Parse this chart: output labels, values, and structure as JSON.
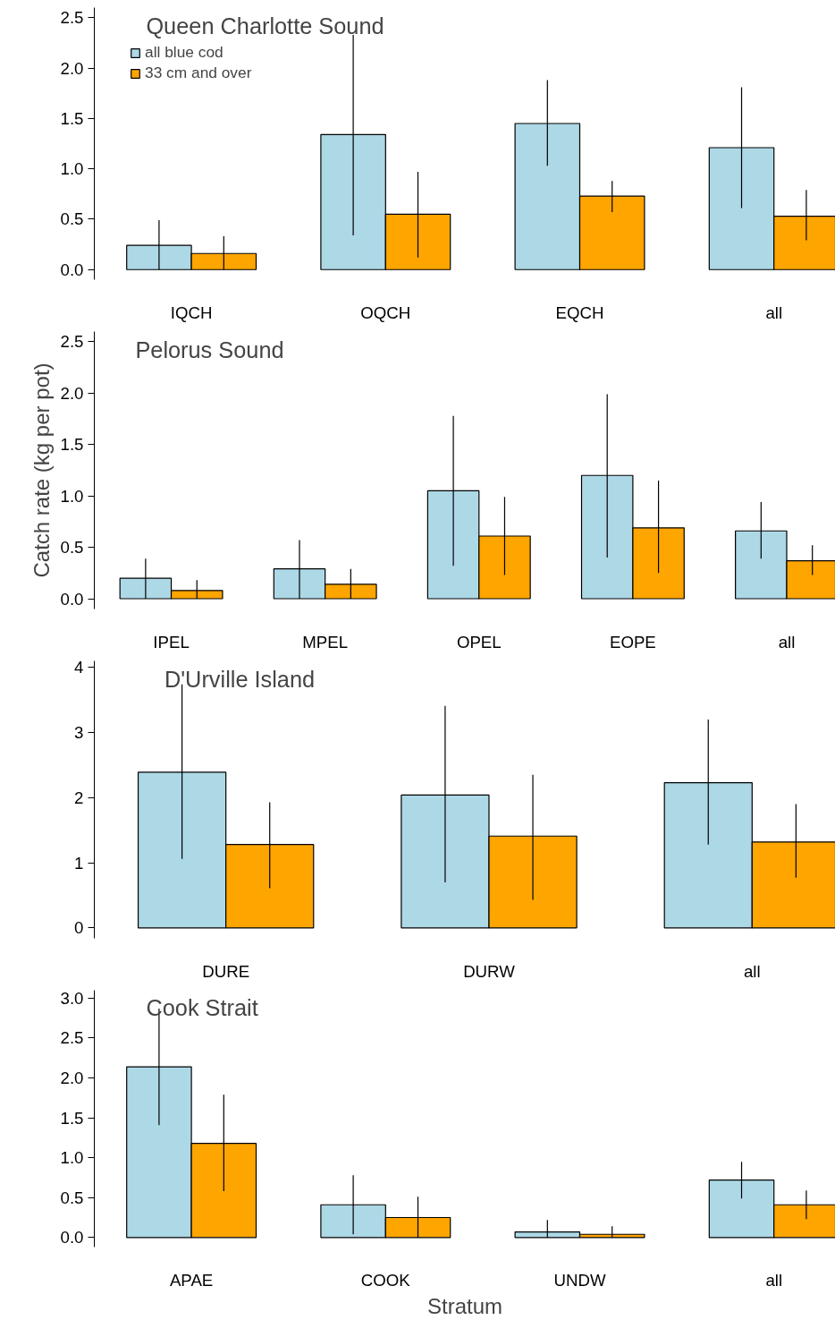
{
  "chart_data": [
    {
      "type": "bar",
      "title": "Queen Charlotte Sound",
      "categories": [
        "IQCH",
        "OQCH",
        "EQCH",
        "all"
      ],
      "legend": "top left",
      "ylim": [
        -0.1,
        2.6
      ],
      "yticks": [
        {
          "value": 0,
          "label": "0.0"
        },
        {
          "value": 0.5,
          "label": "0.5"
        },
        {
          "value": 1,
          "label": "1.0"
        },
        {
          "value": 1.5,
          "label": "1.5"
        },
        {
          "value": 2,
          "label": "2.0"
        },
        {
          "value": 2.5,
          "label": "2.5"
        }
      ],
      "series": [
        {
          "name": "all blue cod",
          "color": "#add8e6",
          "values": [
            0.24,
            1.34,
            1.45,
            1.21
          ],
          "errors": [
            [
              0.0,
              0.49
            ],
            [
              0.34,
              2.33
            ],
            [
              1.03,
              1.88
            ],
            [
              0.61,
              1.81
            ]
          ]
        },
        {
          "name": "33 cm and over",
          "color": "#ffa500",
          "values": [
            0.16,
            0.55,
            0.73,
            0.53
          ],
          "errors": [
            [
              0.0,
              0.33
            ],
            [
              0.12,
              0.97
            ],
            [
              0.57,
              0.88
            ],
            [
              0.29,
              0.79
            ]
          ]
        }
      ]
    },
    {
      "type": "bar",
      "title": "Pelorus Sound",
      "ylabel": "Catch rate (kg per pot)",
      "categories": [
        "IPEL",
        "MPEL",
        "OPEL",
        "EOPE",
        "all"
      ],
      "ylim": [
        -0.1,
        2.6
      ],
      "yticks": [
        {
          "value": 0,
          "label": "0.0"
        },
        {
          "value": 0.5,
          "label": "0.5"
        },
        {
          "value": 1,
          "label": "1.0"
        },
        {
          "value": 1.5,
          "label": "1.5"
        },
        {
          "value": 2,
          "label": "2.0"
        },
        {
          "value": 2.5,
          "label": "2.5"
        }
      ],
      "series": [
        {
          "color": "#add8e6",
          "values": [
            0.2,
            0.29,
            1.05,
            1.2,
            0.66
          ],
          "errors": [
            [
              0.0,
              0.39
            ],
            [
              0.0,
              0.57
            ],
            [
              0.32,
              1.78
            ],
            [
              0.4,
              1.99
            ],
            [
              0.39,
              0.94
            ]
          ]
        },
        {
          "color": "#ffa500",
          "values": [
            0.08,
            0.14,
            0.61,
            0.69,
            0.37
          ],
          "errors": [
            [
              0.0,
              0.18
            ],
            [
              0.0,
              0.29
            ],
            [
              0.23,
              0.99
            ],
            [
              0.25,
              1.15
            ],
            [
              0.23,
              0.52
            ]
          ]
        }
      ]
    },
    {
      "type": "bar",
      "title": "D'Urville Island",
      "categories": [
        "DURE",
        "DURW",
        "all"
      ],
      "ylim": [
        -0.16,
        4.1
      ],
      "yticks": [
        0,
        1,
        2,
        3,
        4
      ],
      "series": [
        {
          "color": "#add8e6",
          "values": [
            2.39,
            2.04,
            2.23
          ],
          "errors": [
            [
              1.06,
              3.74
            ],
            [
              0.7,
              3.41
            ],
            [
              1.28,
              3.2
            ]
          ]
        },
        {
          "color": "#ffa500",
          "values": [
            1.28,
            1.41,
            1.32
          ],
          "errors": [
            [
              0.61,
              1.93
            ],
            [
              0.43,
              2.35
            ],
            [
              0.77,
              1.9
            ]
          ]
        }
      ]
    },
    {
      "type": "bar",
      "title": "Cook Strait",
      "xlabel": "Stratum",
      "categories": [
        "APAE",
        "COOK",
        "UNDW",
        "all"
      ],
      "ylim": [
        -0.12,
        3.1
      ],
      "yticks": [
        {
          "value": 0,
          "label": "0.0"
        },
        {
          "value": 0.5,
          "label": "0.5"
        },
        {
          "value": 1,
          "label": "1.0"
        },
        {
          "value": 1.5,
          "label": "1.5"
        },
        {
          "value": 2,
          "label": "2.0"
        },
        {
          "value": 2.5,
          "label": "2.5"
        },
        {
          "value": 3,
          "label": "3.0"
        }
      ],
      "series": [
        {
          "color": "#add8e6",
          "values": [
            2.14,
            0.41,
            0.07,
            0.72
          ],
          "errors": [
            [
              1.41,
              2.87
            ],
            [
              0.04,
              0.78
            ],
            [
              0.0,
              0.22
            ],
            [
              0.49,
              0.95
            ]
          ]
        },
        {
          "color": "#ffa500",
          "values": [
            1.18,
            0.25,
            0.04,
            0.41
          ],
          "errors": [
            [
              0.58,
              1.79
            ],
            [
              0.0,
              0.51
            ],
            [
              0.0,
              0.14
            ],
            [
              0.23,
              0.59
            ]
          ]
        }
      ]
    }
  ]
}
